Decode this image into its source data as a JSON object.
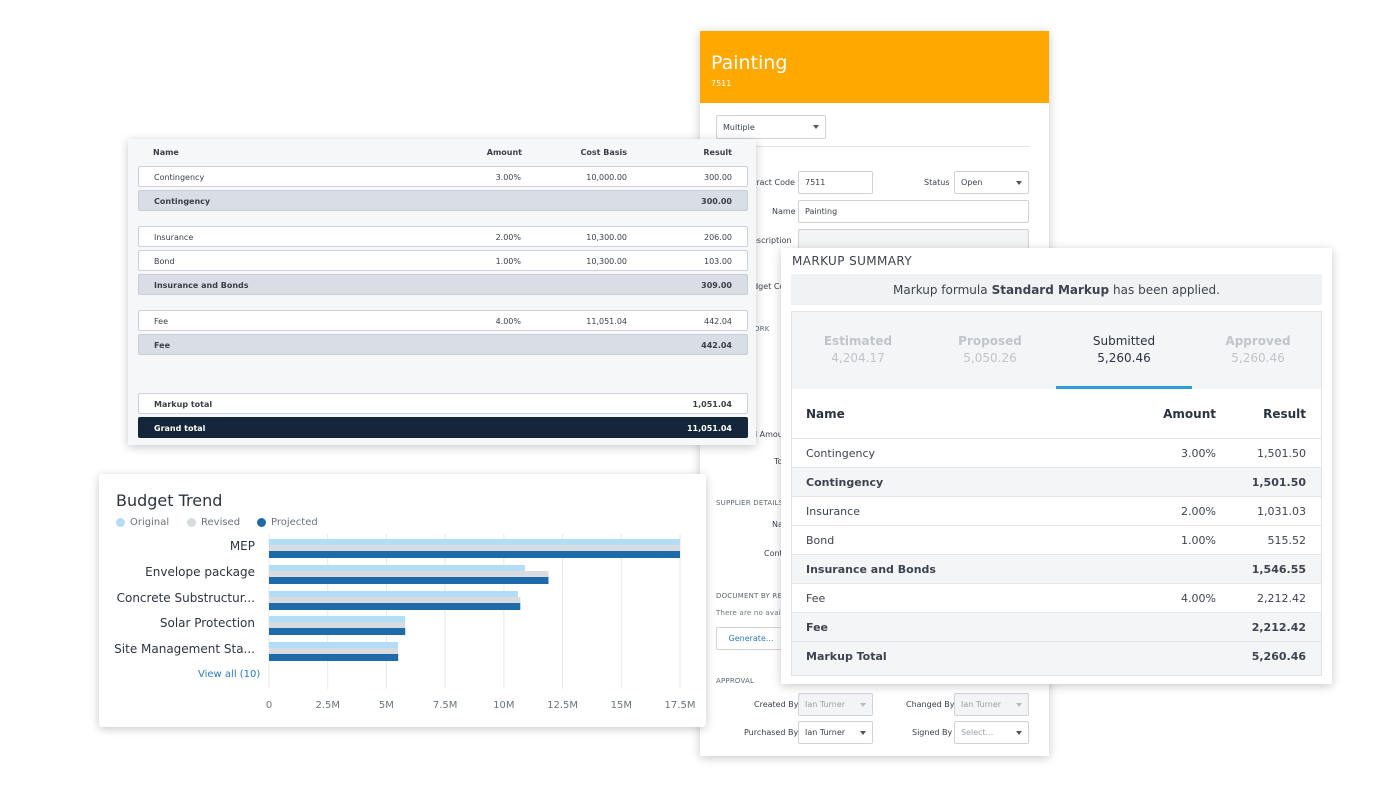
{
  "painting": {
    "title": "Painting",
    "code": "7511",
    "view_select": "Multiple",
    "labels": {
      "contract_code": "ntract Code",
      "status": "Status",
      "name": "Name",
      "description": "escription",
      "budget_code": "udget Co",
      "work": "ORK",
      "amount": "d Amou",
      "total": "To",
      "name2": "Na",
      "contact": "Cont",
      "created_by": "Created By",
      "changed_by": "Changed By",
      "purchased_by": "Purchased By",
      "signed_by": "Signed By"
    },
    "values": {
      "contract_code": "7511",
      "status": "Open",
      "name": "Painting",
      "created_by": "Ian Turner",
      "changed_by": "Ian Turner",
      "purchased_by": "Ian Turner",
      "signed_by_placeholder": "Select..."
    },
    "sections": {
      "supplier": "SUPPLIER DETAILS",
      "document": "DOCUMENT BY RE",
      "no_docs": "There are no availa",
      "approval": "APPROVAL"
    },
    "generate_button": "Generate..."
  },
  "markup_table": {
    "headers": {
      "name": "Name",
      "amount": "Amount",
      "cost_basis": "Cost Basis",
      "result": "Result"
    },
    "rows": [
      {
        "name": "Contingency",
        "amount": "3.00%",
        "cost_basis": "10,000.00",
        "result": "300.00"
      },
      {
        "name": "Contingency",
        "result": "300.00"
      },
      {
        "name": "Insurance",
        "amount": "2.00%",
        "cost_basis": "10,300.00",
        "result": "206.00"
      },
      {
        "name": "Bond",
        "amount": "1.00%",
        "cost_basis": "10,300.00",
        "result": "103.00"
      },
      {
        "name": "Insurance and Bonds",
        "result": "309.00"
      },
      {
        "name": "Fee",
        "amount": "4.00%",
        "cost_basis": "11,051.04",
        "result": "442.04"
      },
      {
        "name": "Fee",
        "result": "442.04"
      },
      {
        "name": "Markup total",
        "result": "1,051.04"
      },
      {
        "name": "Grand total",
        "result": "11,051.04"
      }
    ]
  },
  "budget": {
    "title": "Budget Trend",
    "legend": [
      "Original",
      "Revised",
      "Projected"
    ],
    "view_all": "View all (10)"
  },
  "colors": {
    "header_orange": "#FFA800",
    "original": "#B3DCF5",
    "revised": "#D8DCE0",
    "projected": "#1F6AA8",
    "accent_tab": "#2aa0d8",
    "grand_total_bg": "#16263a"
  },
  "chart_data": {
    "type": "bar",
    "orientation": "horizontal",
    "categories": [
      "MEP",
      "Envelope package",
      "Concrete Substructur...",
      "Solar Protection",
      "Site Management Sta..."
    ],
    "series": [
      {
        "name": "Original",
        "values": [
          17.5,
          10.9,
          10.6,
          5.8,
          5.5
        ]
      },
      {
        "name": "Revised",
        "values": [
          17.5,
          11.9,
          10.7,
          5.8,
          5.5
        ]
      },
      {
        "name": "Projected",
        "values": [
          17.5,
          11.9,
          10.7,
          5.8,
          5.5
        ]
      }
    ],
    "x_ticks": [
      "0",
      "2.5M",
      "5M",
      "7.5M",
      "10M",
      "12.5M",
      "15M",
      "17.5M"
    ],
    "xlim": [
      0,
      17.5
    ],
    "x_unit": "M",
    "grid": true
  },
  "summary": {
    "title": "MARKUP SUMMARY",
    "notice_prefix": "Markup formula",
    "notice_formula": "Standard Markup",
    "notice_suffix": "has been applied.",
    "tabs": [
      {
        "label": "Estimated",
        "value": "4,204.17"
      },
      {
        "label": "Proposed",
        "value": "5,050.26"
      },
      {
        "label": "Submitted",
        "value": "5,260.46"
      },
      {
        "label": "Approved",
        "value": "5,260.46"
      }
    ],
    "headers": {
      "name": "Name",
      "amount": "Amount",
      "result": "Result"
    },
    "rows": [
      {
        "name": "Contingency",
        "amount": "3.00%",
        "result": "1,501.50"
      },
      {
        "name": "Contingency",
        "result": "1,501.50"
      },
      {
        "name": "Insurance",
        "amount": "2.00%",
        "result": "1,031.03"
      },
      {
        "name": "Bond",
        "amount": "1.00%",
        "result": "515.52"
      },
      {
        "name": "Insurance and Bonds",
        "result": "1,546.55"
      },
      {
        "name": "Fee",
        "amount": "4.00%",
        "result": "2,212.42"
      },
      {
        "name": "Fee",
        "result": "2,212.42"
      },
      {
        "name": "Markup Total",
        "result": "5,260.46"
      }
    ]
  }
}
